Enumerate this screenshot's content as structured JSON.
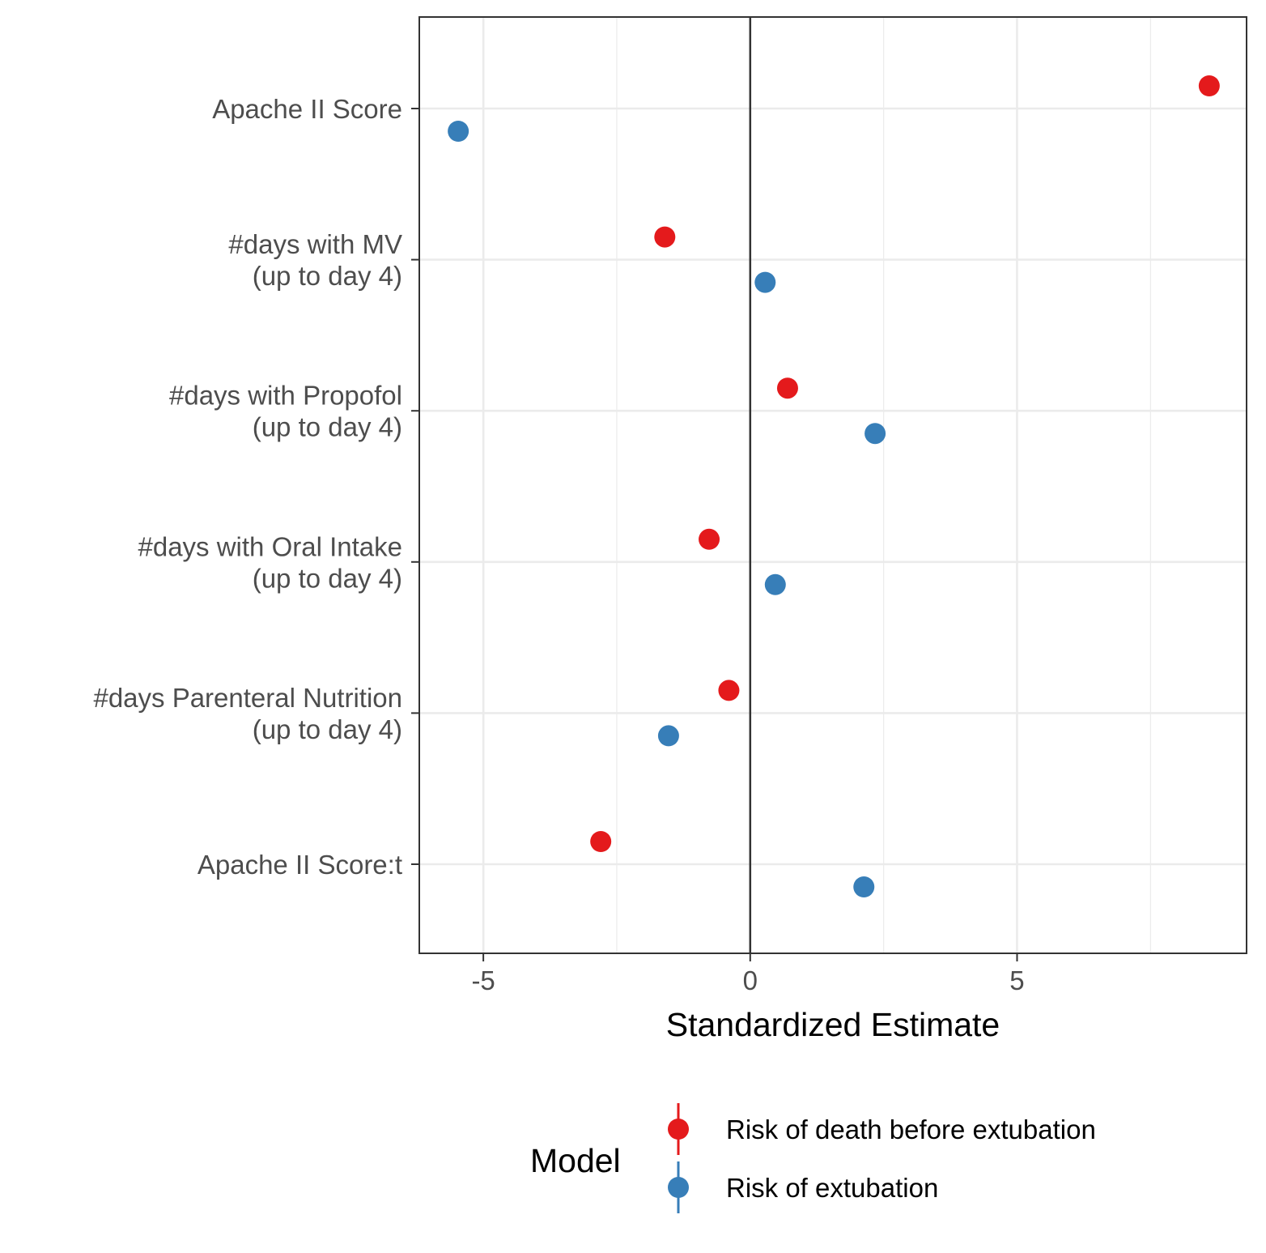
{
  "chart_data": {
    "type": "scatter",
    "xlabel": "Standardized Estimate",
    "xlim": [
      -6.2,
      9.3
    ],
    "x_ticks": [
      -5,
      0,
      5
    ],
    "x_tick_labels": [
      "-5",
      "0",
      "5"
    ],
    "reference_line_x": 0,
    "grid": true,
    "categories": [
      [
        "Apache II Score"
      ],
      [
        "#days with MV",
        "(up to day 4)"
      ],
      [
        "#days with Propofol",
        "(up to day 4)"
      ],
      [
        "#days with Oral Intake",
        "(up to day 4)"
      ],
      [
        "#days Parenteral Nutrition",
        "(up to day 4)"
      ],
      [
        "Apache II Score:t"
      ]
    ],
    "series": [
      {
        "name": "Risk of death before extubation",
        "color": "#e41a1c",
        "values": [
          8.6,
          -1.6,
          0.7,
          -0.77,
          -0.4,
          -2.8
        ]
      },
      {
        "name": "Risk of extubation",
        "color": "#377eb8",
        "values": [
          -5.47,
          0.28,
          2.34,
          0.47,
          -1.53,
          2.13
        ]
      }
    ],
    "legend": {
      "title": "Model",
      "position": "bottom"
    }
  }
}
